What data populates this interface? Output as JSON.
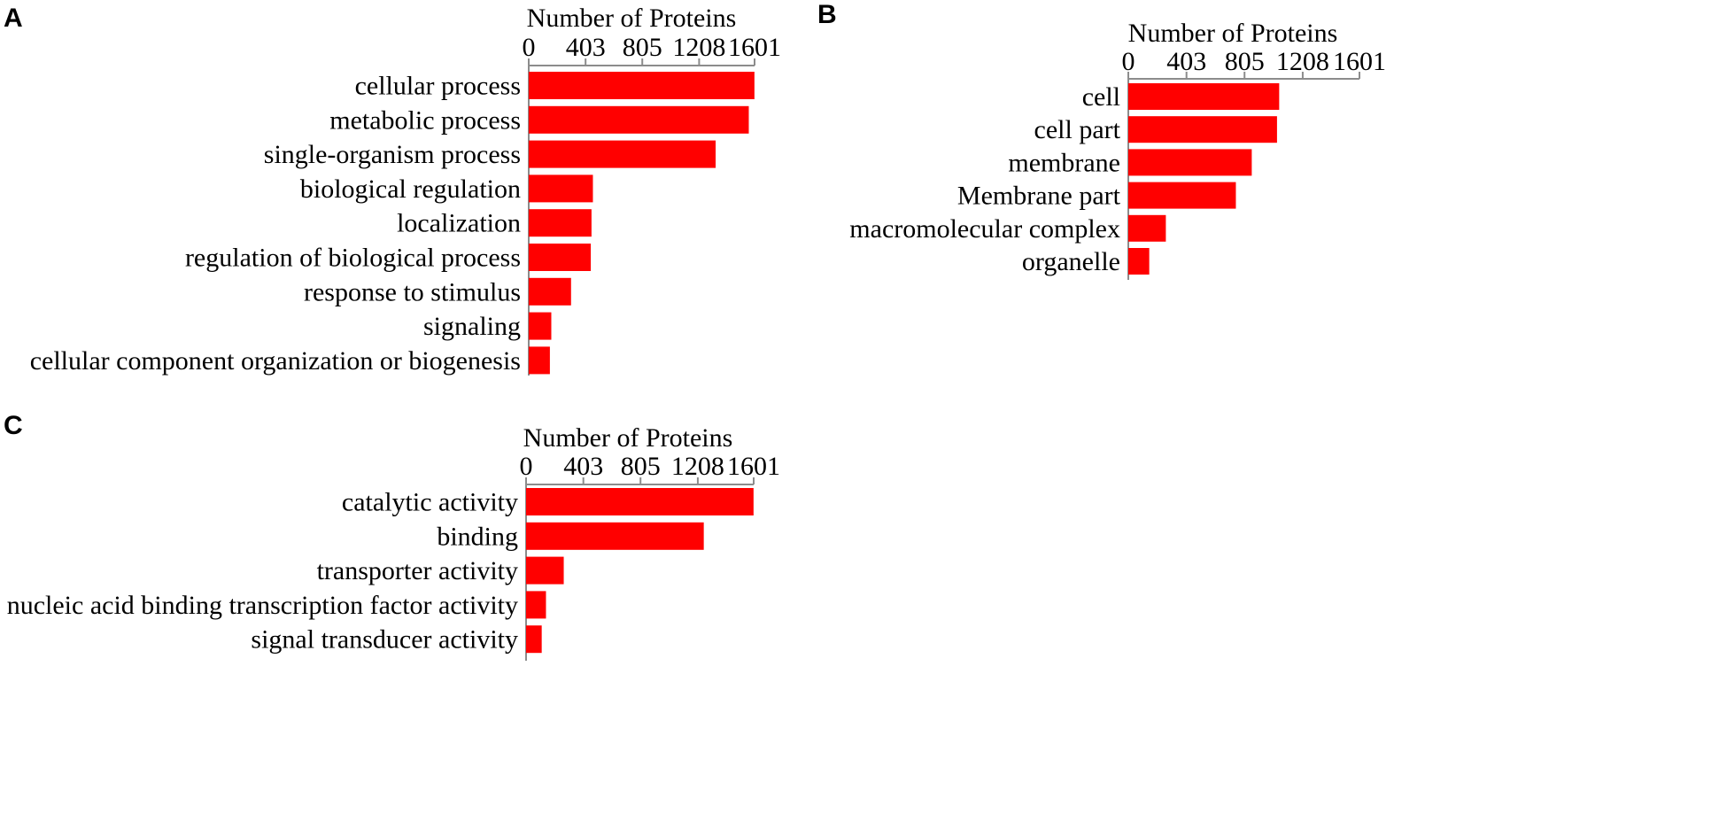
{
  "chart_data": [
    {
      "panel": "A",
      "type": "bar",
      "orientation": "horizontal",
      "xlabel": "Number of Proteins",
      "xticks": [
        0,
        403,
        805,
        1208,
        1601
      ],
      "xlim": [
        0,
        1601
      ],
      "bar_color": "#ff0000",
      "categories": [
        "cellular process",
        "metabolic process",
        "single-organism process",
        "biological regulation",
        "localization",
        "regulation of biological process",
        "response to stimulus",
        "signaling",
        "cellular component organization or biogenesis"
      ],
      "values": [
        1600,
        1560,
        1325,
        455,
        445,
        440,
        300,
        160,
        150
      ]
    },
    {
      "panel": "B",
      "type": "bar",
      "orientation": "horizontal",
      "xlabel": "Number of Proteins",
      "xticks": [
        0,
        403,
        805,
        1208,
        1601
      ],
      "xlim": [
        0,
        1601
      ],
      "bar_color": "#ff0000",
      "categories": [
        "cell",
        "cell part",
        "membrane",
        "Membrane part",
        "macromolecular complex",
        "organelle"
      ],
      "values": [
        1045,
        1030,
        855,
        745,
        260,
        145
      ]
    },
    {
      "panel": "C",
      "type": "bar",
      "orientation": "horizontal",
      "xlabel": "Number of Proteins",
      "xticks": [
        0,
        403,
        805,
        1208,
        1601
      ],
      "xlim": [
        0,
        1601
      ],
      "bar_color": "#ff0000",
      "categories": [
        "catalytic activity",
        "binding",
        "transporter activity",
        "nucleic acid binding transcription factor activity",
        "signal transducer activity"
      ],
      "values": [
        1600,
        1250,
        265,
        140,
        110
      ]
    }
  ]
}
